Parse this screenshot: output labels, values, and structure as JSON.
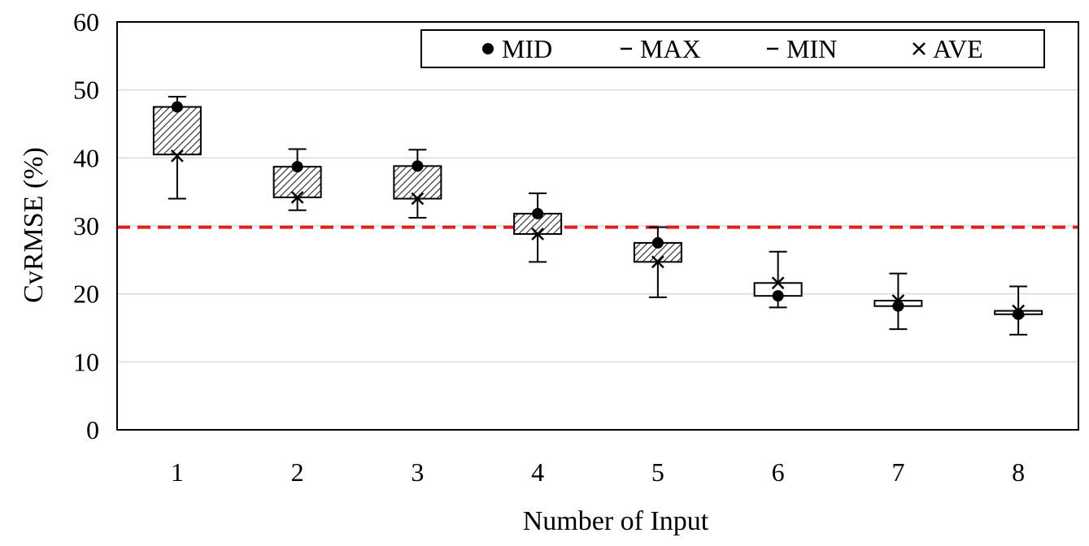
{
  "chart_data": {
    "type": "box",
    "xlabel": "Number of Input",
    "ylabel": "CvRMSE (%)",
    "ylim": [
      0,
      60
    ],
    "yticks": [
      0,
      10,
      20,
      30,
      40,
      50,
      60
    ],
    "categories": [
      "1",
      "2",
      "3",
      "4",
      "5",
      "6",
      "7",
      "8"
    ],
    "grid": true,
    "legend_position": "top-right",
    "legend": [
      {
        "marker": "dot",
        "label": "MID"
      },
      {
        "marker": "dash",
        "label": "MAX"
      },
      {
        "marker": "dash",
        "label": "MIN"
      },
      {
        "marker": "cross",
        "label": "AVE"
      }
    ],
    "reference_line": {
      "y": 29.8,
      "color": "#e02020",
      "style": "dashed"
    },
    "boxes": [
      {
        "x": "1",
        "min": 34.0,
        "q1": 40.5,
        "q3": 47.5,
        "max": 49.0,
        "mid": 47.5,
        "ave": 40.3,
        "hatched": true
      },
      {
        "x": "2",
        "min": 32.3,
        "q1": 34.2,
        "q3": 38.7,
        "max": 41.3,
        "mid": 38.7,
        "ave": 34.2,
        "hatched": true
      },
      {
        "x": "3",
        "min": 31.2,
        "q1": 34.0,
        "q3": 38.8,
        "max": 41.2,
        "mid": 38.8,
        "ave": 34.0,
        "hatched": true
      },
      {
        "x": "4",
        "min": 24.7,
        "q1": 28.8,
        "q3": 31.8,
        "max": 34.8,
        "mid": 31.8,
        "ave": 28.8,
        "hatched": true
      },
      {
        "x": "5",
        "min": 19.5,
        "q1": 24.7,
        "q3": 27.5,
        "max": 29.8,
        "mid": 27.5,
        "ave": 24.7,
        "hatched": true
      },
      {
        "x": "6",
        "min": 18.0,
        "q1": 19.7,
        "q3": 21.6,
        "max": 26.2,
        "mid": 19.7,
        "ave": 21.6,
        "hatched": false
      },
      {
        "x": "7",
        "min": 14.8,
        "q1": 18.2,
        "q3": 19.0,
        "max": 23.0,
        "mid": 18.2,
        "ave": 19.0,
        "hatched": false
      },
      {
        "x": "8",
        "min": 14.0,
        "q1": 17.0,
        "q3": 17.5,
        "max": 21.1,
        "mid": 17.0,
        "ave": 17.5,
        "hatched": false
      }
    ]
  }
}
